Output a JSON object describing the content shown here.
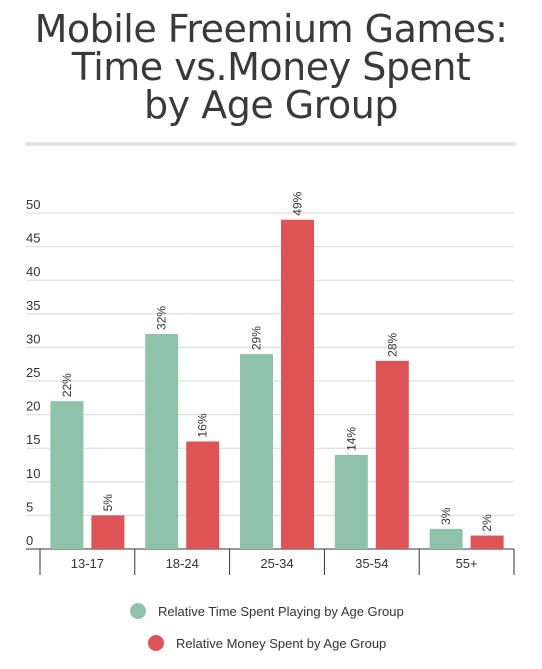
{
  "title_lines": [
    "Mobile Freemium Games:",
    "Time vs.Money Spent",
    "by Age Group"
  ],
  "colors": {
    "time": "#8ec3a7",
    "money": "#de5456"
  },
  "legend": {
    "time": "Relative Time Spent Playing by Age Group",
    "money": "Relative Money Spent by Age Group"
  },
  "chart_data": {
    "type": "bar",
    "title": "Mobile Freemium Games: Time vs.Money Spent by Age Group",
    "categories": [
      "13-17",
      "18-24",
      "25-34",
      "35-54",
      "55+"
    ],
    "series": [
      {
        "name": "Relative Time Spent Playing by Age Group",
        "values": [
          22,
          32,
          29,
          14,
          3
        ],
        "labels": [
          "22%",
          "32%",
          "29%",
          "14%",
          "3%"
        ]
      },
      {
        "name": "Relative Money Spent by Age Group",
        "values": [
          5,
          16,
          49,
          28,
          2
        ],
        "labels": [
          "5%",
          "16%",
          "49%",
          "28%",
          "2%"
        ]
      }
    ],
    "yticks": [
      0,
      5,
      10,
      15,
      20,
      25,
      30,
      35,
      40,
      45,
      50
    ],
    "ylim": [
      0,
      50
    ],
    "grid": true,
    "legend_position": "bottom"
  }
}
